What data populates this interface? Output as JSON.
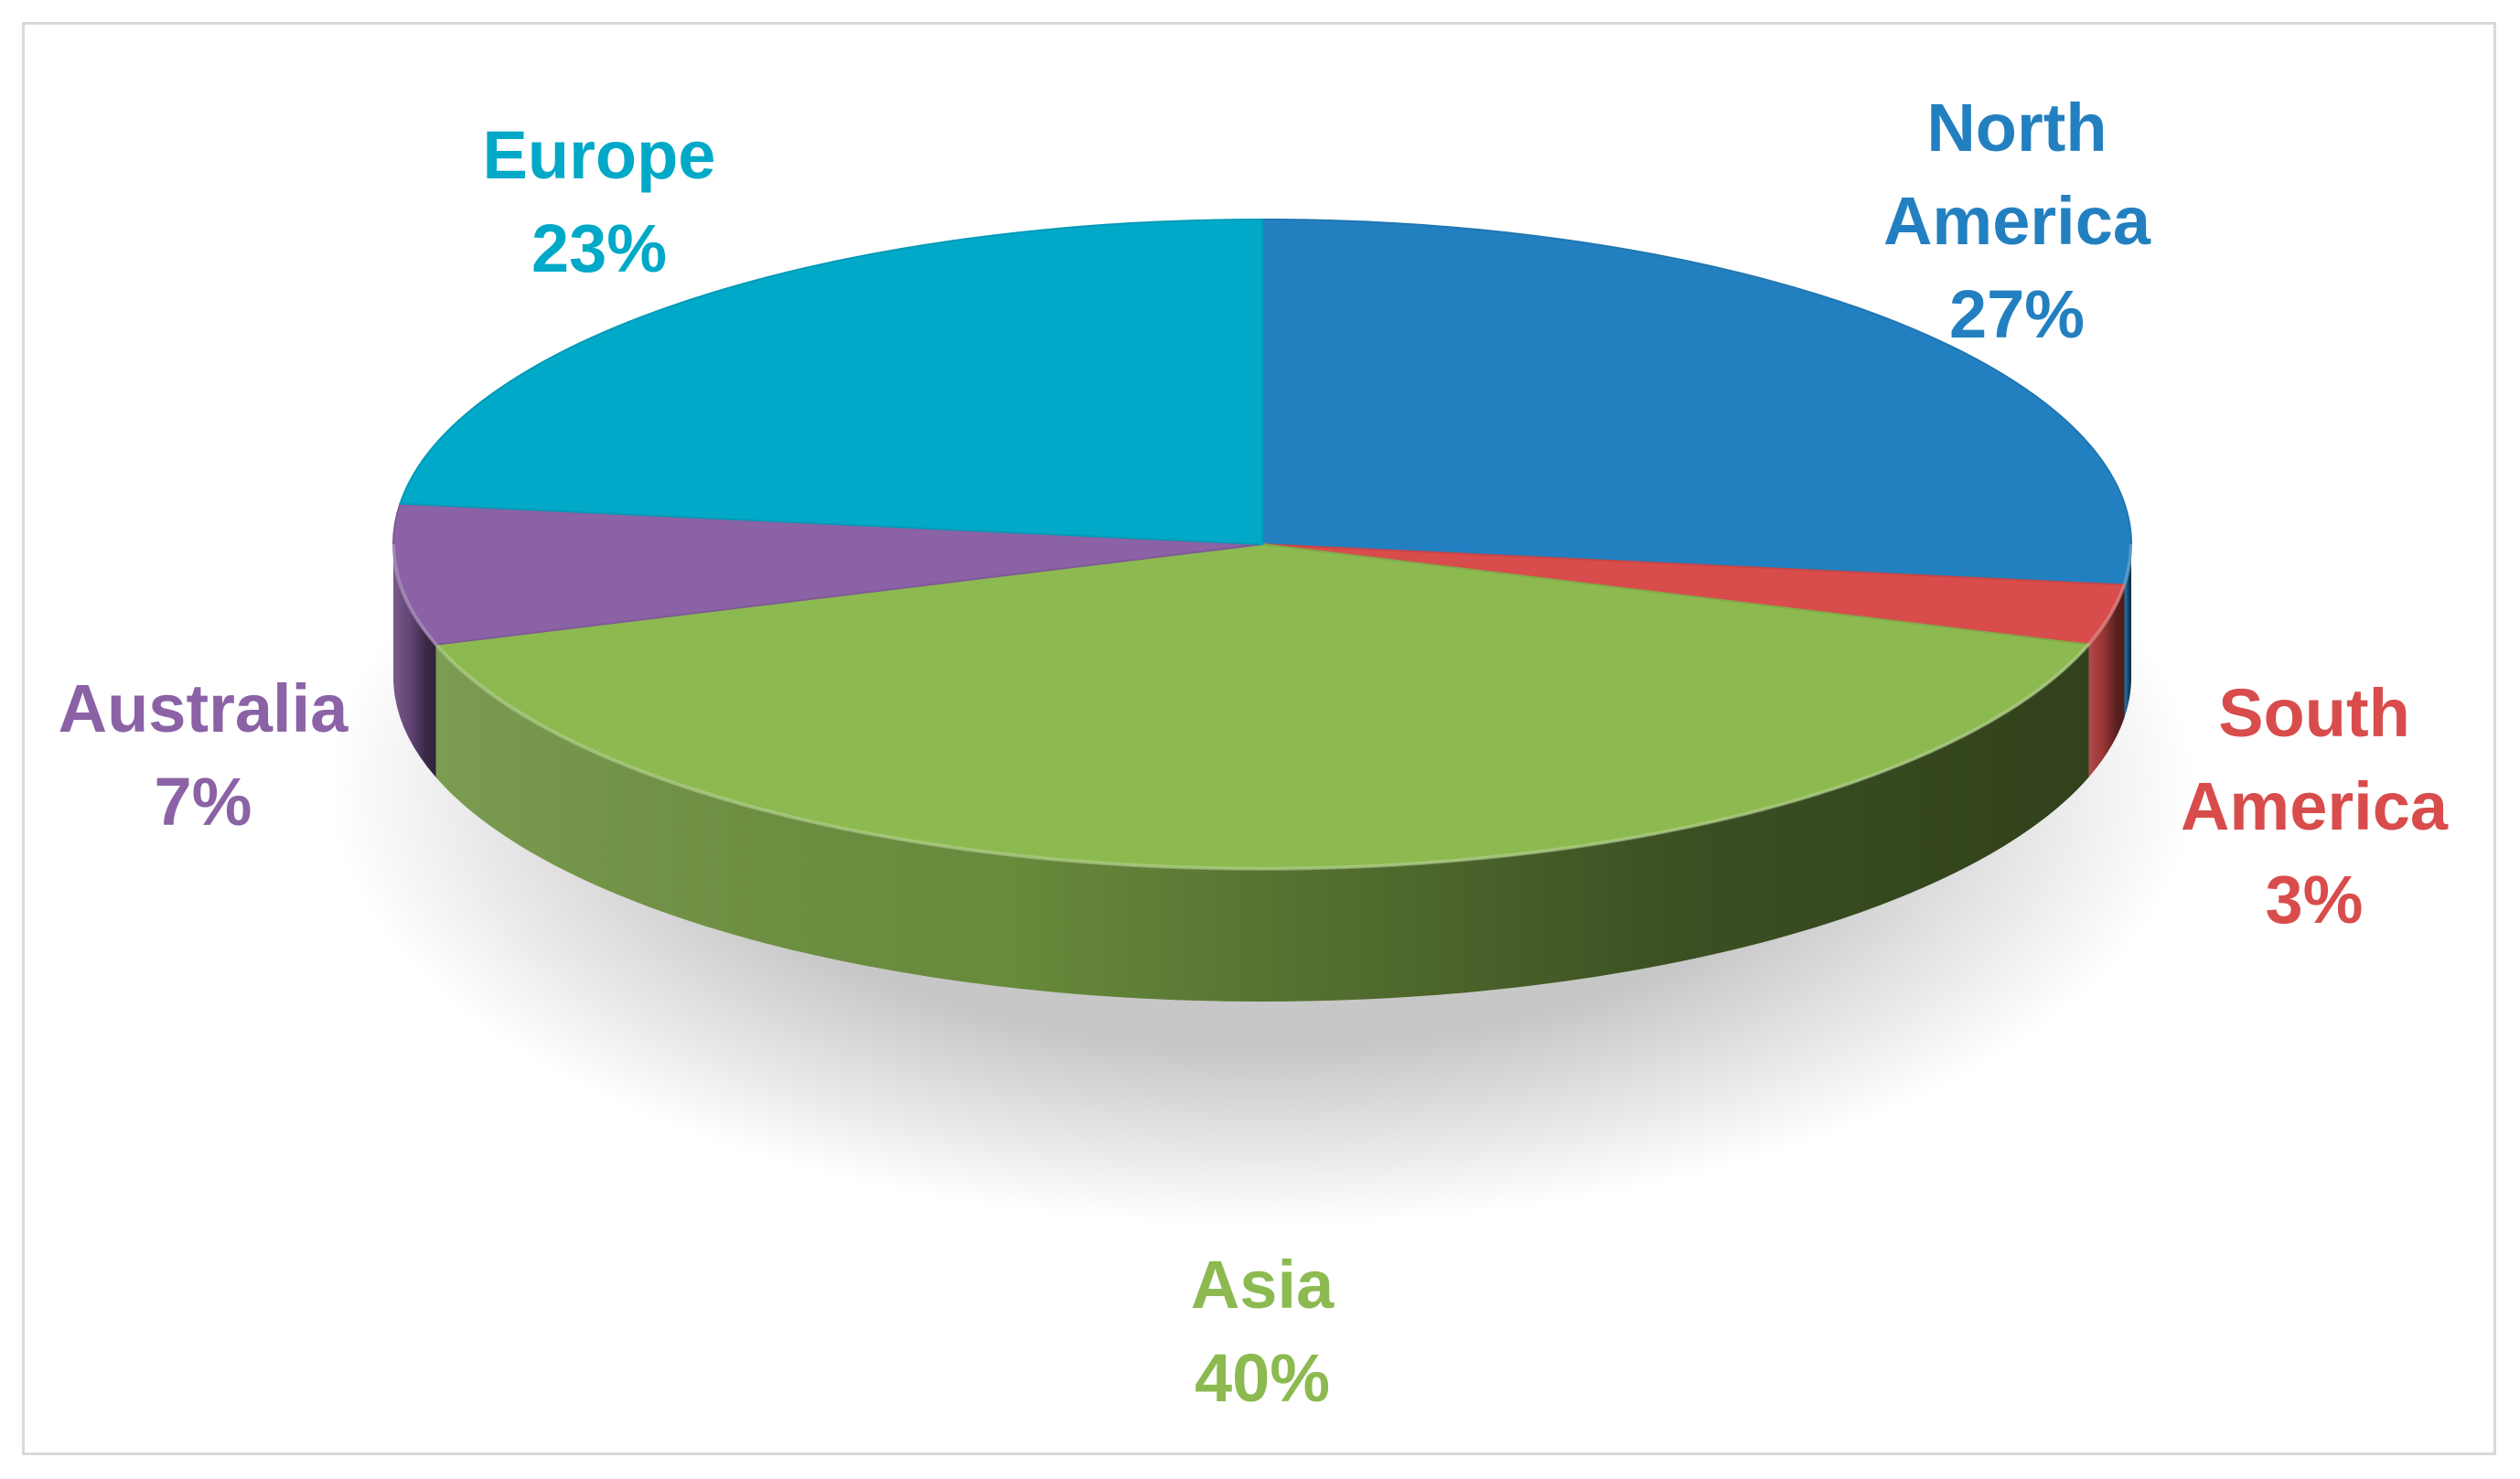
{
  "chart_data": {
    "type": "pie",
    "style": "3d",
    "title": "",
    "slices": [
      {
        "label": "North America",
        "label_lines": [
          "North",
          "America"
        ],
        "value": 27,
        "value_label": "27%",
        "color": "#2380c0"
      },
      {
        "label": "South America",
        "label_lines": [
          "South",
          "America"
        ],
        "value": 3,
        "value_label": "3%",
        "color": "#d94c4c"
      },
      {
        "label": "Asia",
        "label_lines": [
          "Asia"
        ],
        "value": 40,
        "value_label": "40%",
        "color": "#8cba50"
      },
      {
        "label": "Australia",
        "label_lines": [
          "Australia"
        ],
        "value": 7,
        "value_label": "7%",
        "color": "#8a62a5"
      },
      {
        "label": "Europe",
        "label_lines": [
          "Europe"
        ],
        "value": 23,
        "value_label": "23%",
        "color": "#00a9c8"
      }
    ],
    "legend": "none"
  }
}
